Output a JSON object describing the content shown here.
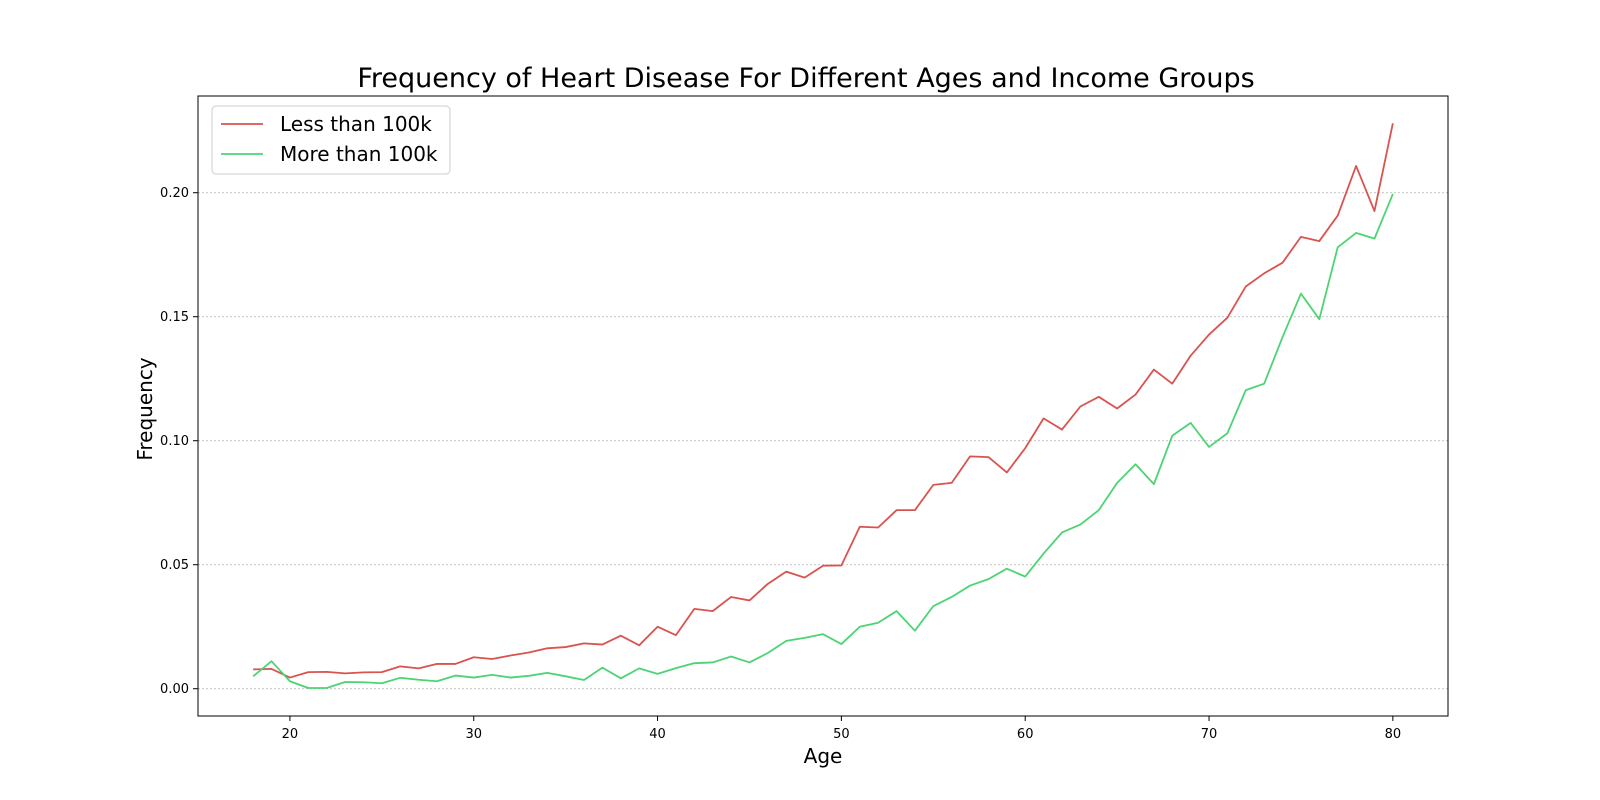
{
  "chart_data": {
    "type": "line",
    "title": "Frequency of Heart Disease For Different Ages and Income Groups",
    "xlabel": "Age",
    "ylabel": "Frequency",
    "xlim": [
      15,
      83
    ],
    "ylim": [
      -0.011,
      0.239
    ],
    "xticks": [
      20,
      30,
      40,
      50,
      60,
      70,
      80
    ],
    "yticks": [
      0.0,
      0.05,
      0.1,
      0.15,
      0.2
    ],
    "xtick_labels": [
      "20",
      "30",
      "40",
      "50",
      "60",
      "70",
      "80"
    ],
    "ytick_labels": [
      "0.00",
      "0.05",
      "0.10",
      "0.15",
      "0.20"
    ],
    "grid": "y-dotted",
    "legend_position": "top-left",
    "x": [
      18,
      19,
      20,
      21,
      22,
      23,
      24,
      25,
      26,
      27,
      28,
      29,
      30,
      31,
      32,
      33,
      34,
      35,
      36,
      37,
      38,
      39,
      40,
      41,
      42,
      43,
      44,
      45,
      46,
      47,
      48,
      49,
      50,
      51,
      52,
      53,
      54,
      55,
      56,
      57,
      58,
      59,
      60,
      61,
      62,
      63,
      64,
      65,
      66,
      67,
      68,
      69,
      70,
      71,
      72,
      73,
      74,
      75,
      76,
      77,
      78,
      79,
      80
    ],
    "series": [
      {
        "name": "Less than 100k",
        "color": "#d9534f",
        "values": [
          0.0078,
          0.008,
          0.0045,
          0.0067,
          0.0068,
          0.0062,
          0.0066,
          0.0067,
          0.009,
          0.0082,
          0.01,
          0.01,
          0.0127,
          0.012,
          0.0134,
          0.0146,
          0.0163,
          0.0168,
          0.0183,
          0.0178,
          0.0214,
          0.0175,
          0.025,
          0.0216,
          0.0322,
          0.0313,
          0.037,
          0.0356,
          0.0423,
          0.0472,
          0.0448,
          0.0496,
          0.0497,
          0.0653,
          0.065,
          0.072,
          0.072,
          0.0822,
          0.083,
          0.0937,
          0.0934,
          0.0872,
          0.097,
          0.109,
          0.1045,
          0.1138,
          0.1177,
          0.113,
          0.1186,
          0.1287,
          0.123,
          0.1343,
          0.1428,
          0.1496,
          0.1622,
          0.1675,
          0.1718,
          0.1822,
          0.1805,
          0.1908,
          0.2108,
          0.1926,
          0.228
        ]
      },
      {
        "name": "More than 100k",
        "color": "#4cd474",
        "values": [
          0.005,
          0.0111,
          0.003,
          0.0003,
          0.0003,
          0.0027,
          0.0026,
          0.0022,
          0.0044,
          0.0036,
          0.003,
          0.0053,
          0.0045,
          0.0056,
          0.0045,
          0.0052,
          0.0064,
          0.005,
          0.0035,
          0.0085,
          0.0042,
          0.0082,
          0.006,
          0.0083,
          0.0103,
          0.0106,
          0.013,
          0.0106,
          0.0144,
          0.0193,
          0.0205,
          0.022,
          0.018,
          0.025,
          0.0266,
          0.0313,
          0.0234,
          0.0333,
          0.037,
          0.0416,
          0.0442,
          0.0484,
          0.0452,
          0.0545,
          0.063,
          0.0662,
          0.072,
          0.083,
          0.0905,
          0.0825,
          0.102,
          0.1072,
          0.0975,
          0.103,
          0.1204,
          0.123,
          0.1418,
          0.1593,
          0.149,
          0.178,
          0.1838,
          0.1815,
          0.1995
        ]
      }
    ]
  }
}
